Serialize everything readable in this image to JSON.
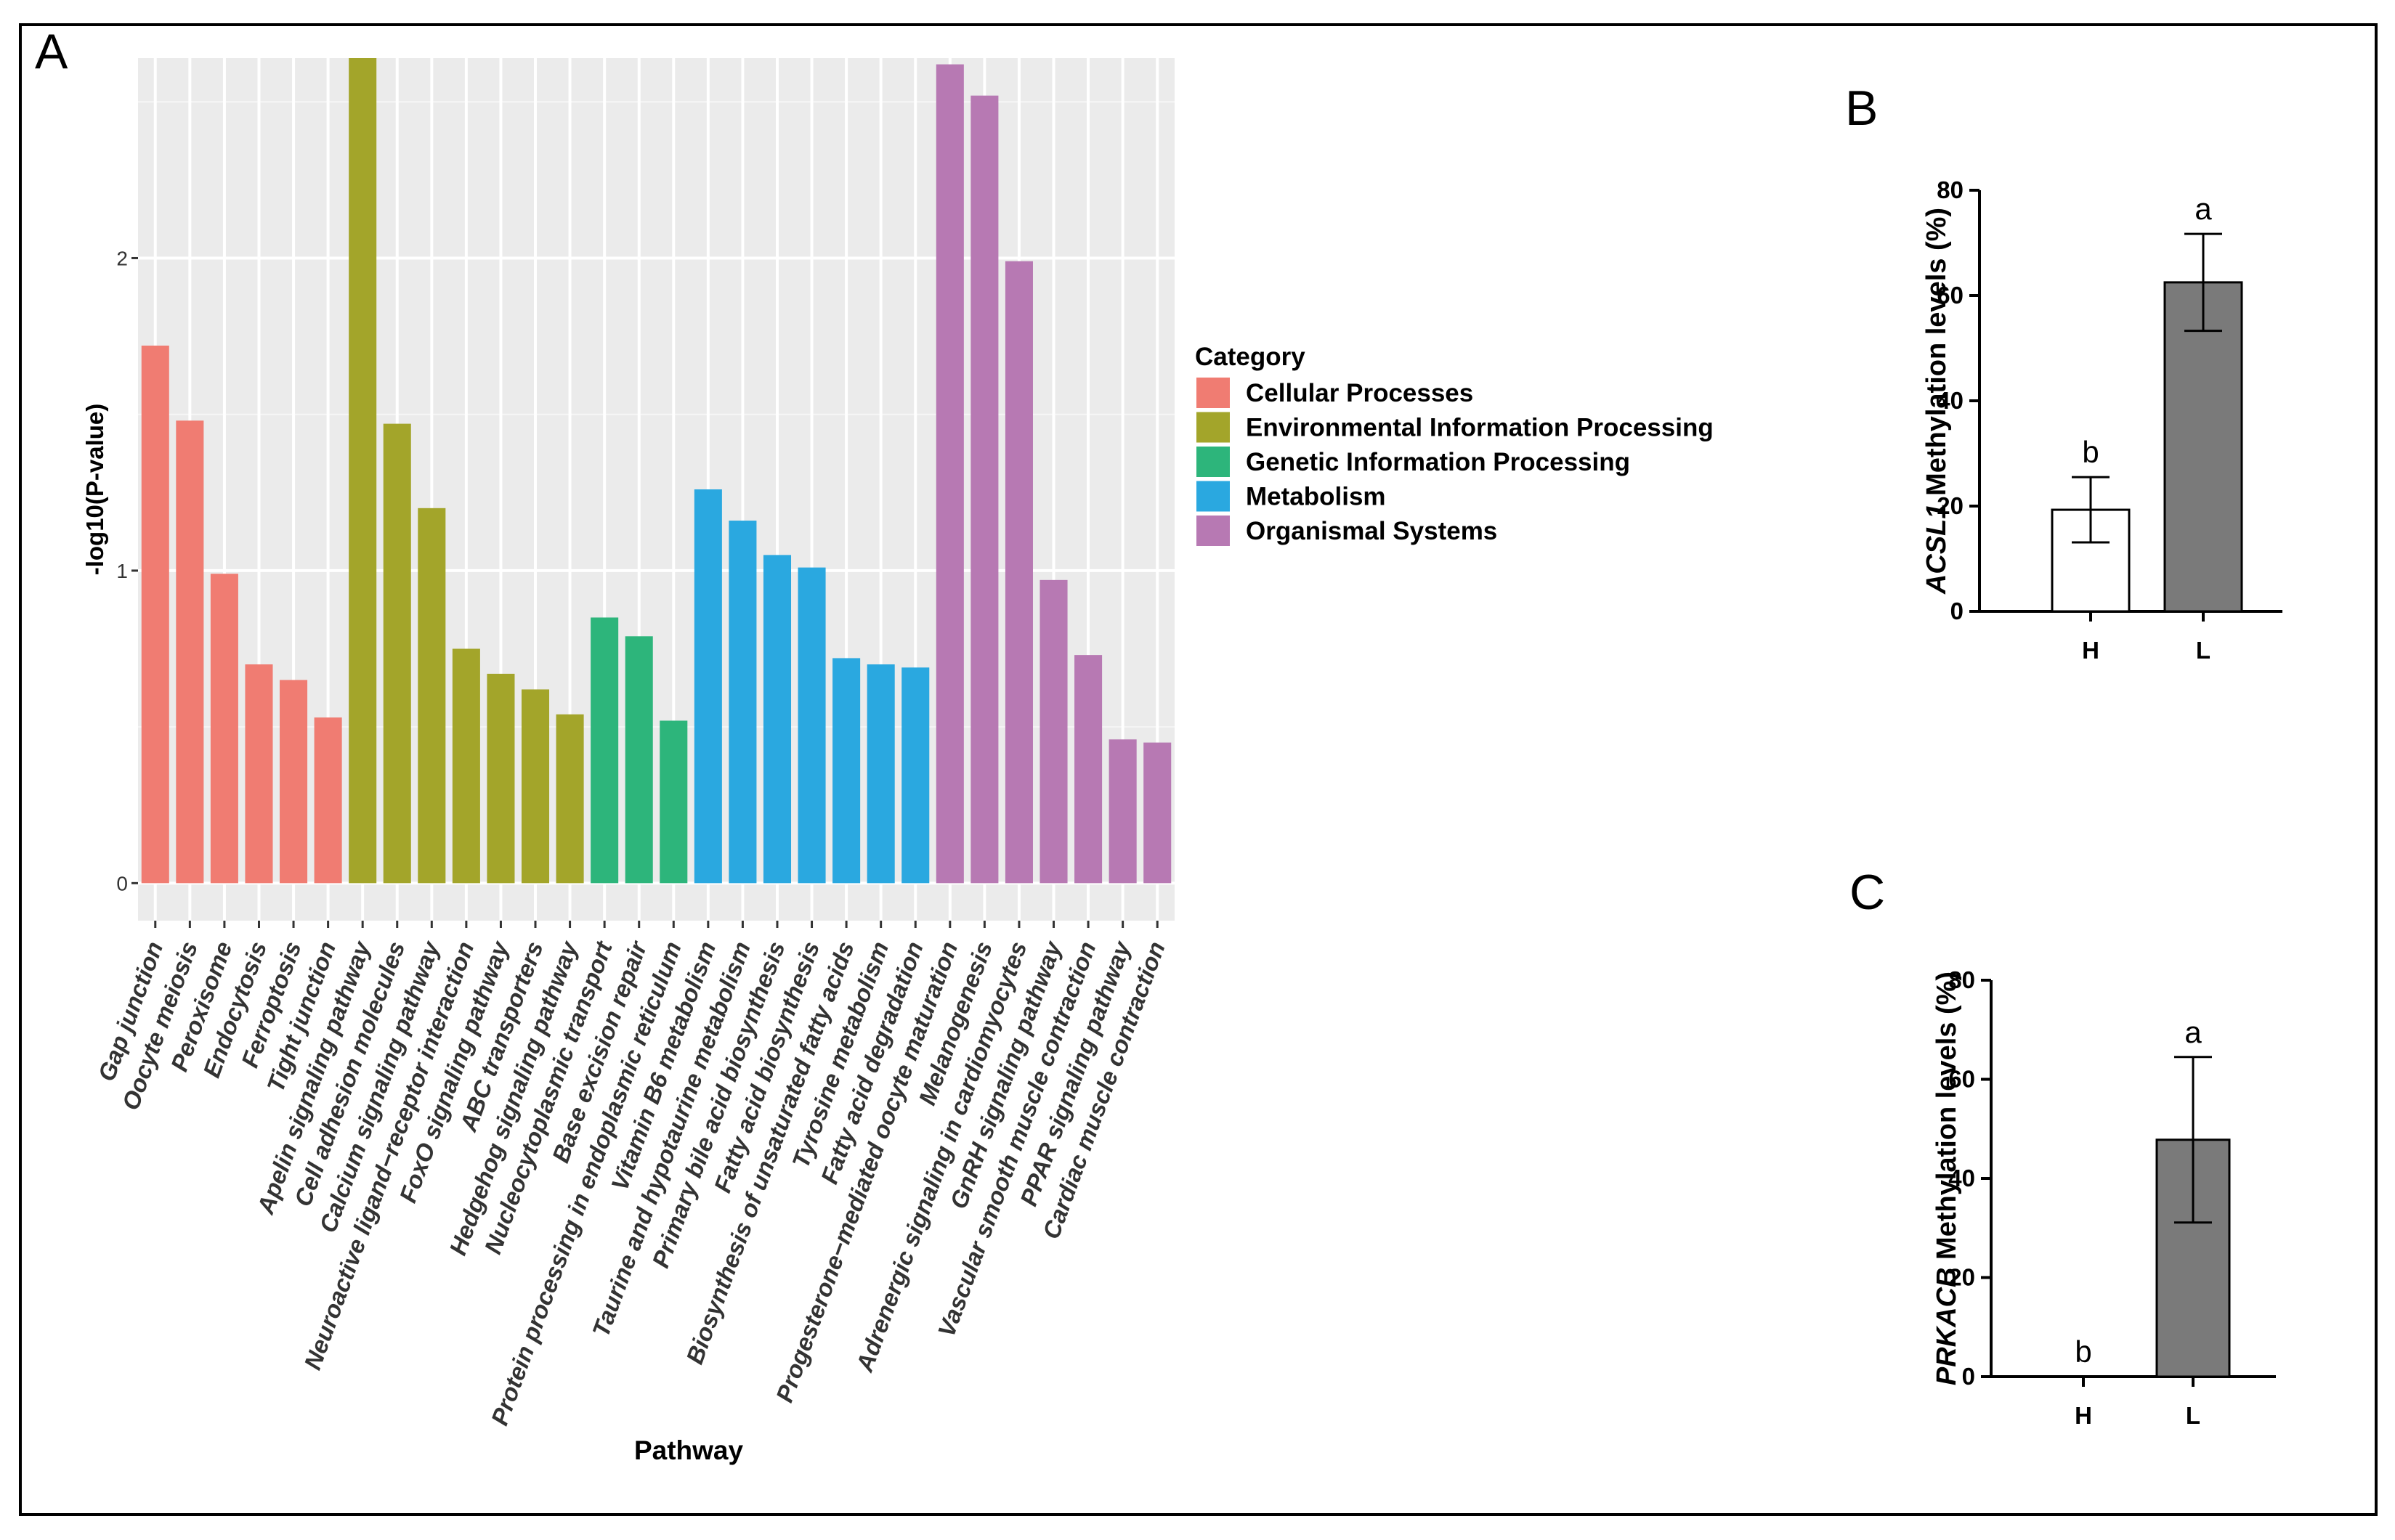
{
  "panels": {
    "a": "A",
    "b": "B",
    "c": "C"
  },
  "chart_data": [
    {
      "id": "A",
      "type": "bar",
      "title": "",
      "xlabel": "Pathway",
      "ylabel": "-log10(P-value)",
      "ylim": [
        -0.12,
        2.64
      ],
      "yticks": [
        0,
        1,
        2
      ],
      "grid": true,
      "legend_title": "Category",
      "legend_position": "right",
      "categories_legend": [
        {
          "name": "Cellular Processes",
          "color": "#F07C72"
        },
        {
          "name": "Environmental Information Processing",
          "color": "#A3A52A"
        },
        {
          "name": "Genetic Information Processing",
          "color": "#2DB57B"
        },
        {
          "name": "Metabolism",
          "color": "#2AA8E0"
        },
        {
          "name": "Organismal Systems",
          "color": "#B779B3"
        }
      ],
      "categories": [
        "Gap junction",
        "Oocyte meiosis",
        "Peroxisome",
        "Endocytosis",
        "Ferroptosis",
        "Tight junction",
        "Apelin signaling pathway",
        "Cell adhesion molecules",
        "Calcium signaling pathway",
        "Neuroactive ligand−receptor interaction",
        "FoxO signaling pathway",
        "ABC transporters",
        "Hedgehog signaling pathway",
        "Nucleocytoplasmic transport",
        "Base excision repair",
        "Protein processing in endoplasmic reticulum",
        "Vitamin B6 metabolism",
        "Taurine and hypotaurine metabolism",
        "Primary bile acid biosynthesis",
        "Fatty acid biosynthesis",
        "Biosynthesis of unsaturated fatty acids",
        "Tyrosine metabolism",
        "Fatty acid degradation",
        "Progesterone−mediated oocyte maturation",
        "Melanogenesis",
        "Adrenergic signaling in cardiomyocytes",
        "GnRH signaling pathway",
        "Vascular smooth muscle contraction",
        "PPAR signaling pathway",
        "Cardiac muscle contraction"
      ],
      "values": [
        1.72,
        1.48,
        0.99,
        0.7,
        0.65,
        0.53,
        2.64,
        1.47,
        1.2,
        0.75,
        0.67,
        0.62,
        0.54,
        0.85,
        0.79,
        0.52,
        1.26,
        1.16,
        1.05,
        1.01,
        0.72,
        0.7,
        0.69,
        2.62,
        2.52,
        1.99,
        0.97,
        0.73,
        0.46,
        0.45
      ],
      "groups": [
        0,
        0,
        0,
        0,
        0,
        0,
        1,
        1,
        1,
        1,
        1,
        1,
        1,
        2,
        2,
        2,
        3,
        3,
        3,
        3,
        3,
        3,
        3,
        4,
        4,
        4,
        4,
        4,
        4,
        4
      ]
    },
    {
      "id": "B",
      "type": "bar",
      "gene": "ACSL1",
      "ylabel_suffix": " Methylation levels (%)",
      "categories": [
        "H",
        "L"
      ],
      "values": [
        19.3,
        62.5
      ],
      "errors": [
        6.2,
        9.2
      ],
      "significance": [
        "b",
        "a"
      ],
      "bar_fill": [
        "#ffffff",
        "#7a7a7a"
      ],
      "ylim": [
        0,
        80
      ],
      "yticks": [
        0,
        20,
        40,
        60,
        80
      ]
    },
    {
      "id": "C",
      "type": "bar",
      "gene": "PRKACB",
      "ylabel_suffix": " Methylation levels (%)",
      "categories": [
        "H",
        "L"
      ],
      "values": [
        0,
        47.8
      ],
      "errors": [
        0,
        16.7
      ],
      "significance": [
        "b",
        "a"
      ],
      "bar_fill": [
        "#ffffff",
        "#7a7a7a"
      ],
      "ylim": [
        0,
        80
      ],
      "yticks": [
        0,
        20,
        40,
        60,
        80
      ]
    }
  ]
}
